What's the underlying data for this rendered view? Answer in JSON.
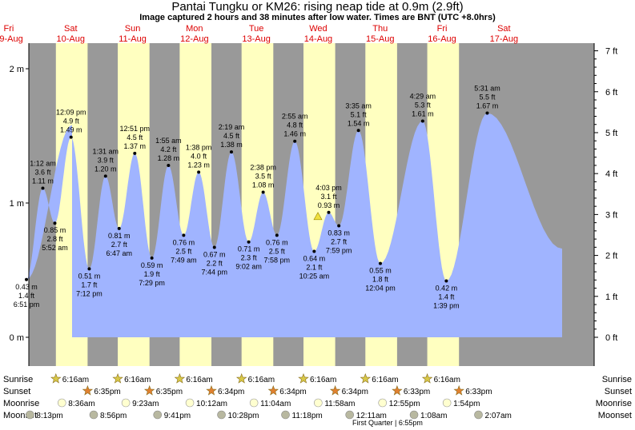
{
  "title": "Pantai Tungku or KM26: rising  neap tide at 0.9m (2.9ft)",
  "subtitle": "Image captured 2 hours and 38 minutes after low water. Times are BNT (UTC +8.0hrs)",
  "colors": {
    "night": "#999999",
    "day": "#ffffc0",
    "tide": "#a0b4ff",
    "date_text": "#dd0000",
    "sunrise_star": "#d8c848",
    "sunset_star": "#e08030",
    "moonrise": "#ffffd0",
    "moonset": "#b8b8a0",
    "current_marker": "#f0e040"
  },
  "chart_data": {
    "type": "area",
    "title": "Pantai Tungku or KM26: rising  neap tide at 0.9m (2.9ft)",
    "y_left_ticks": [
      "0 m",
      "1 m",
      "2 m"
    ],
    "y_right_ticks": [
      "0 ft",
      "1 ft",
      "2 ft",
      "3 ft",
      "4 ft",
      "5 ft",
      "6 ft",
      "7 ft"
    ],
    "days": [
      {
        "name": "Fri",
        "date": "09-Aug"
      },
      {
        "name": "Sat",
        "date": "10-Aug"
      },
      {
        "name": "Sun",
        "date": "11-Aug"
      },
      {
        "name": "Mon",
        "date": "12-Aug"
      },
      {
        "name": "Tue",
        "date": "13-Aug"
      },
      {
        "name": "Wed",
        "date": "14-Aug"
      },
      {
        "name": "Thu",
        "date": "15-Aug"
      },
      {
        "name": "Fri",
        "date": "16-Aug"
      },
      {
        "name": "Sat",
        "date": "17-Aug"
      }
    ],
    "extremes": [
      {
        "day": 0,
        "time": "6:51 pm",
        "m": 0.43,
        "ft": "1.4 ft",
        "type": "low"
      },
      {
        "day": 1,
        "time": "1:12 am",
        "m": 1.11,
        "ft": "3.6 ft",
        "type": "high"
      },
      {
        "day": 1,
        "time": "5:52 am",
        "m": 0.85,
        "ft": "2.8 ft",
        "type": "low"
      },
      {
        "day": 1,
        "time": "12:09 pm",
        "m": 1.49,
        "ft": "4.9 ft",
        "type": "high"
      },
      {
        "day": 1,
        "time": "7:12 pm",
        "m": 0.51,
        "ft": "1.7 ft",
        "type": "low"
      },
      {
        "day": 2,
        "time": "1:31 am",
        "m": 1.2,
        "ft": "3.9 ft",
        "type": "high"
      },
      {
        "day": 2,
        "time": "6:47 am",
        "m": 0.81,
        "ft": "2.7 ft",
        "type": "low"
      },
      {
        "day": 2,
        "time": "12:51 pm",
        "m": 1.37,
        "ft": "4.5 ft",
        "type": "high"
      },
      {
        "day": 2,
        "time": "7:29 pm",
        "m": 0.59,
        "ft": "1.9 ft",
        "type": "low"
      },
      {
        "day": 3,
        "time": "1:55 am",
        "m": 1.28,
        "ft": "4.2 ft",
        "type": "high"
      },
      {
        "day": 3,
        "time": "7:49 am",
        "m": 0.76,
        "ft": "2.5 ft",
        "type": "low"
      },
      {
        "day": 3,
        "time": "1:38 pm",
        "m": 1.23,
        "ft": "4.0 ft",
        "type": "high"
      },
      {
        "day": 3,
        "time": "7:44 pm",
        "m": 0.67,
        "ft": "2.2 ft",
        "type": "low"
      },
      {
        "day": 4,
        "time": "2:19 am",
        "m": 1.38,
        "ft": "4.5 ft",
        "type": "high"
      },
      {
        "day": 4,
        "time": "9:02 am",
        "m": 0.71,
        "ft": "2.3 ft",
        "type": "low"
      },
      {
        "day": 4,
        "time": "2:38 pm",
        "m": 1.08,
        "ft": "3.5 ft",
        "type": "high"
      },
      {
        "day": 4,
        "time": "7:58 pm",
        "m": 0.76,
        "ft": "2.5 ft",
        "type": "low"
      },
      {
        "day": 5,
        "time": "2:55 am",
        "m": 1.46,
        "ft": "4.8 ft",
        "type": "high"
      },
      {
        "day": 5,
        "time": "10:25 am",
        "m": 0.64,
        "ft": "2.1 ft",
        "type": "low"
      },
      {
        "day": 5,
        "time": "4:03 pm",
        "m": 0.93,
        "ft": "3.1 ft",
        "type": "high"
      },
      {
        "day": 5,
        "time": "7:59 pm",
        "m": 0.83,
        "ft": "2.7 ft",
        "type": "low"
      },
      {
        "day": 6,
        "time": "3:35 am",
        "m": 1.54,
        "ft": "5.1 ft",
        "type": "high"
      },
      {
        "day": 6,
        "time": "12:04 pm",
        "m": 0.55,
        "ft": "1.8 ft",
        "type": "low"
      },
      {
        "day": 7,
        "time": "4:29 am",
        "m": 1.61,
        "ft": "5.3 ft",
        "type": "high"
      },
      {
        "day": 7,
        "time": "1:39 pm",
        "m": 0.42,
        "ft": "1.4 ft",
        "type": "low"
      },
      {
        "day": 8,
        "time": "5:31 am",
        "m": 1.67,
        "ft": "5.5 ft",
        "type": "high"
      }
    ],
    "current": {
      "m": 0.9,
      "ft": 2.9
    },
    "sunrise": "6:16am",
    "sunset": [
      "6:35pm",
      "6:35pm",
      "6:34pm",
      "6:34pm",
      "6:34pm",
      "6:33pm",
      "6:33pm"
    ],
    "moonrise": [
      "8:36am",
      "9:23am",
      "10:12am",
      "11:04am",
      "11:58am",
      "12:55pm",
      "1:54pm"
    ],
    "moonset": [
      "8:13pm",
      "8:56pm",
      "9:41pm",
      "10:28pm",
      "11:18pm",
      "12:11am",
      "1:08am",
      "2:07am"
    ],
    "row_labels": {
      "sunrise": "Sunrise",
      "sunset": "Sunset",
      "moonrise": "Moonrise",
      "moonset": "Moonset"
    },
    "moon_phase_note": "First Quarter | 6:55pm"
  }
}
